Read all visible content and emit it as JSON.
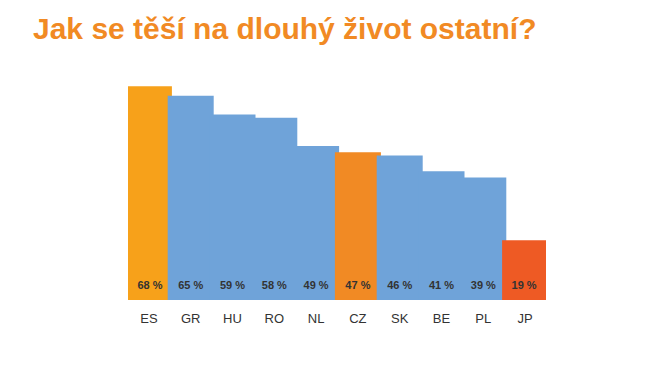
{
  "chart_data": {
    "type": "bar",
    "title": "Jak se těší na dlouhý život ostatní?",
    "categories": [
      "ES",
      "GR",
      "HU",
      "RO",
      "NL",
      "CZ",
      "SK",
      "BE",
      "PL",
      "JP"
    ],
    "values": [
      68,
      65,
      59,
      58,
      49,
      47,
      46,
      41,
      39,
      19
    ],
    "value_labels": [
      "68 %",
      "65 %",
      "59 %",
      "58 %",
      "49 %",
      "47 %",
      "46 %",
      "41 %",
      "39 %",
      "19 %"
    ],
    "colors": [
      "#f7a11a",
      "#6fa3d9",
      "#6fa3d9",
      "#6fa3d9",
      "#6fa3d9",
      "#f18a24",
      "#6fa3d9",
      "#6fa3d9",
      "#6fa3d9",
      "#ee5a24"
    ],
    "ylim": [
      0,
      70
    ],
    "grid": false,
    "data_labels": true,
    "tick_labels": "x"
  }
}
